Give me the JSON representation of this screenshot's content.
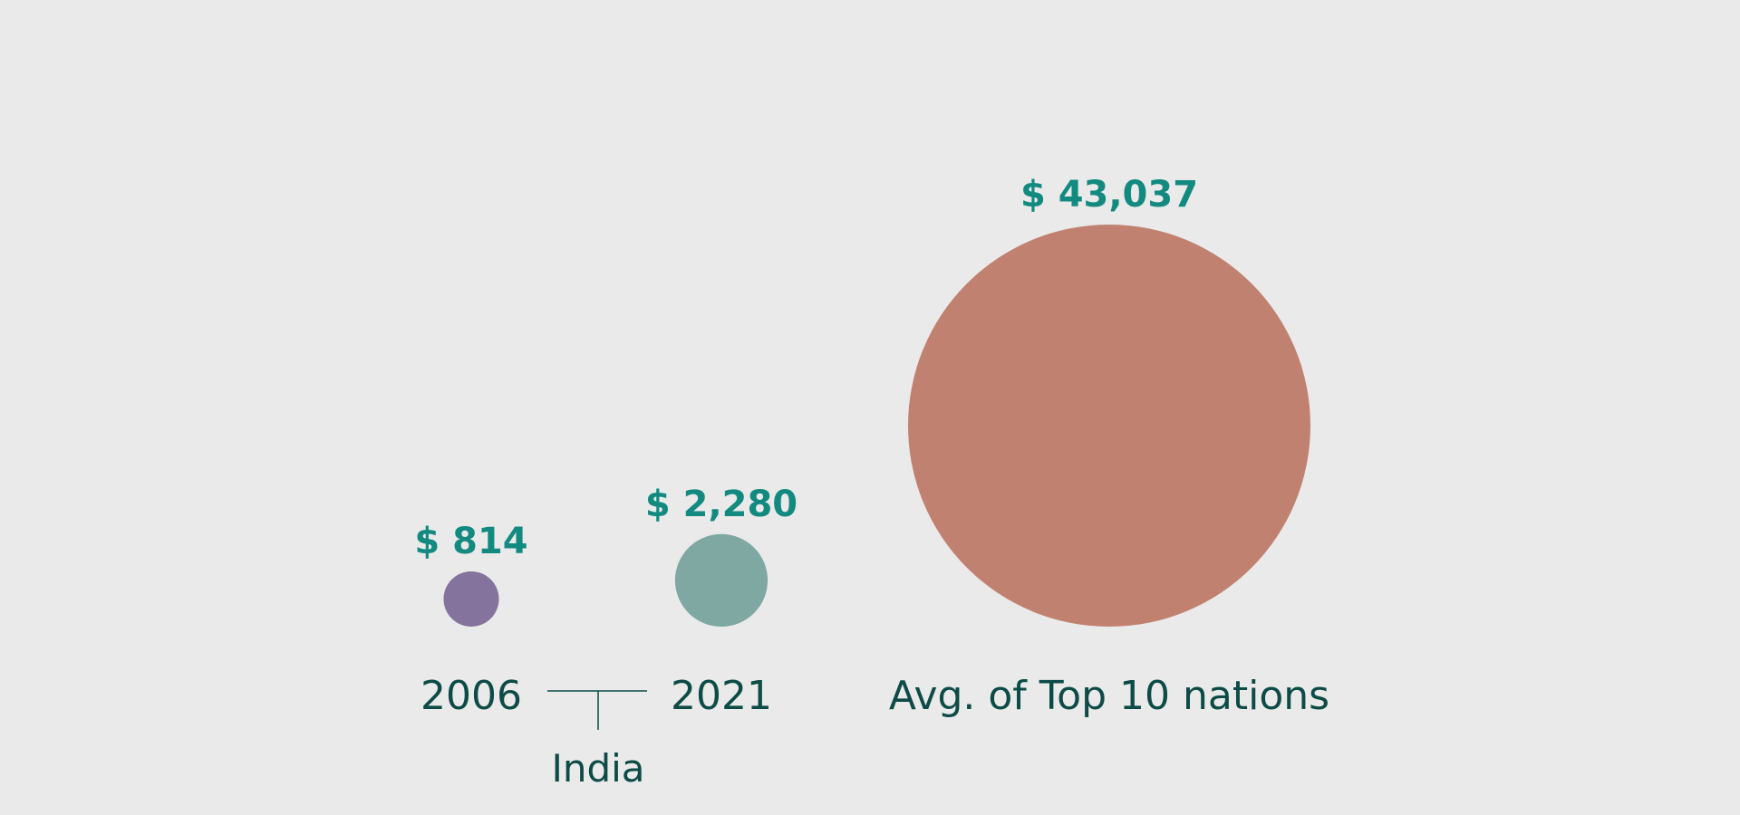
{
  "chart_data": {
    "type": "bubble",
    "unit": "$",
    "categories": [
      "2006",
      "2021",
      "Avg. of Top 10 nations"
    ],
    "values": [
      814,
      2280,
      43037
    ],
    "value_labels": [
      "$ 814",
      "$ 2,280",
      "$ 43,037"
    ],
    "group_label": "India",
    "group_members": [
      "2006",
      "2021"
    ]
  },
  "colors": {
    "background": "#eaeaea",
    "value_label": "#128a80",
    "category_label": "#0d4b46",
    "bubbles": [
      "#84749d",
      "#7fa8a2",
      "#c18170"
    ]
  }
}
